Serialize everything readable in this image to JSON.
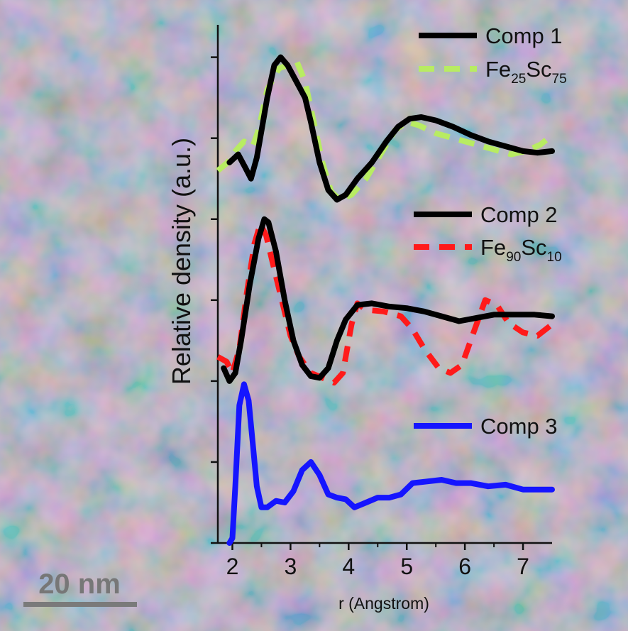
{
  "colors": {
    "comp": "#000000",
    "fe25sc75": "#b8ec62",
    "fe90sc10": "#ff1a1a",
    "comp3": "#1515ff",
    "scalebar": "#7a7a7a"
  },
  "scale_bar": {
    "label": "20 nm"
  },
  "chart_data": {
    "type": "line",
    "title": "",
    "xlabel": "r (Angstrom)",
    "ylabel": "Relative density (a.u.)",
    "xlim": [
      1.75,
      7.5
    ],
    "ylim": [
      0.0,
      3.2
    ],
    "xticks": [
      2,
      3,
      4,
      5,
      6,
      7
    ],
    "xtick_labels": [
      "2",
      "3",
      "4",
      "5",
      "6",
      "7"
    ],
    "yticks": [
      0.0,
      0.5,
      1.0,
      1.5,
      2.0,
      2.5,
      3.0
    ],
    "ytick_labels": [
      "",
      "",
      "",
      "",
      "",
      "",
      ""
    ],
    "legend": [
      {
        "group": "top",
        "text": "Comp 1",
        "series": "Comp 1"
      },
      {
        "group": "top",
        "text": "Fe",
        "sub1": "25",
        "text2": "Sc",
        "sub2": "75",
        "series": "Fe25Sc75"
      },
      {
        "group": "middle",
        "text": "Comp 2",
        "series": "Comp 2"
      },
      {
        "group": "middle",
        "text": "Fe",
        "sub1": "90",
        "text2": "Sc",
        "sub2": "10",
        "series": "Fe90Sc10"
      },
      {
        "group": "bottom",
        "text": "Comp 3",
        "series": "Comp 3"
      }
    ],
    "series": [
      {
        "name": "Comp 1",
        "style": "solid",
        "color": "#000000",
        "points": [
          [
            1.95,
            2.35
          ],
          [
            2.1,
            2.4
          ],
          [
            2.22,
            2.32
          ],
          [
            2.32,
            2.25
          ],
          [
            2.42,
            2.38
          ],
          [
            2.6,
            2.75
          ],
          [
            2.72,
            2.95
          ],
          [
            2.83,
            3.0
          ],
          [
            2.95,
            2.95
          ],
          [
            3.1,
            2.85
          ],
          [
            3.25,
            2.75
          ],
          [
            3.35,
            2.6
          ],
          [
            3.5,
            2.35
          ],
          [
            3.65,
            2.18
          ],
          [
            3.8,
            2.12
          ],
          [
            3.95,
            2.15
          ],
          [
            4.15,
            2.25
          ],
          [
            4.4,
            2.35
          ],
          [
            4.65,
            2.48
          ],
          [
            4.85,
            2.57
          ],
          [
            5.05,
            2.62
          ],
          [
            5.25,
            2.63
          ],
          [
            5.5,
            2.61
          ],
          [
            5.8,
            2.57
          ],
          [
            6.1,
            2.52
          ],
          [
            6.4,
            2.48
          ],
          [
            6.7,
            2.45
          ],
          [
            7.0,
            2.42
          ],
          [
            7.25,
            2.41
          ],
          [
            7.5,
            2.42
          ]
        ]
      },
      {
        "name": "Fe25Sc75",
        "style": "dashed",
        "color": "#b8ec62",
        "points": [
          [
            1.75,
            2.3
          ],
          [
            1.92,
            2.35
          ],
          [
            2.05,
            2.42
          ],
          [
            2.2,
            2.48
          ],
          [
            2.35,
            2.45
          ],
          [
            2.45,
            2.55
          ],
          [
            2.6,
            2.8
          ],
          [
            2.8,
            2.93
          ],
          [
            3.0,
            2.96
          ],
          [
            3.1,
            2.98
          ],
          [
            3.25,
            2.85
          ],
          [
            3.4,
            2.6
          ],
          [
            3.55,
            2.35
          ],
          [
            3.7,
            2.17
          ],
          [
            3.85,
            2.12
          ],
          [
            4.05,
            2.15
          ],
          [
            4.3,
            2.25
          ],
          [
            4.55,
            2.4
          ],
          [
            4.8,
            2.55
          ],
          [
            5.0,
            2.6
          ],
          [
            5.2,
            2.58
          ],
          [
            5.5,
            2.53
          ],
          [
            5.8,
            2.5
          ],
          [
            6.2,
            2.46
          ],
          [
            6.5,
            2.43
          ],
          [
            6.8,
            2.4
          ],
          [
            7.05,
            2.42
          ],
          [
            7.3,
            2.46
          ],
          [
            7.4,
            2.49
          ]
        ]
      },
      {
        "name": "Comp 2",
        "style": "solid",
        "color": "#000000",
        "points": [
          [
            1.85,
            1.08
          ],
          [
            1.95,
            1.0
          ],
          [
            2.05,
            1.05
          ],
          [
            2.15,
            1.25
          ],
          [
            2.3,
            1.6
          ],
          [
            2.45,
            1.88
          ],
          [
            2.55,
            2.0
          ],
          [
            2.62,
            1.98
          ],
          [
            2.75,
            1.8
          ],
          [
            2.9,
            1.5
          ],
          [
            3.05,
            1.25
          ],
          [
            3.2,
            1.1
          ],
          [
            3.35,
            1.03
          ],
          [
            3.5,
            1.02
          ],
          [
            3.65,
            1.08
          ],
          [
            3.8,
            1.25
          ],
          [
            3.95,
            1.38
          ],
          [
            4.15,
            1.47
          ],
          [
            4.4,
            1.48
          ],
          [
            4.7,
            1.46
          ],
          [
            5.0,
            1.45
          ],
          [
            5.3,
            1.43
          ],
          [
            5.6,
            1.4
          ],
          [
            5.9,
            1.37
          ],
          [
            6.2,
            1.39
          ],
          [
            6.5,
            1.41
          ],
          [
            6.9,
            1.41
          ],
          [
            7.2,
            1.41
          ],
          [
            7.5,
            1.4
          ]
        ]
      },
      {
        "name": "Fe90Sc10",
        "style": "dashed",
        "color": "#ff1a1a",
        "points": [
          [
            1.75,
            1.15
          ],
          [
            1.9,
            1.12
          ],
          [
            2.0,
            1.05
          ],
          [
            2.12,
            1.2
          ],
          [
            2.25,
            1.55
          ],
          [
            2.38,
            1.85
          ],
          [
            2.48,
            1.97
          ],
          [
            2.58,
            1.9
          ],
          [
            2.7,
            1.72
          ],
          [
            2.85,
            1.5
          ],
          [
            3.0,
            1.28
          ],
          [
            3.15,
            1.15
          ],
          [
            3.35,
            1.05
          ],
          [
            3.55,
            1.02
          ],
          [
            3.75,
            0.99
          ],
          [
            3.9,
            1.05
          ],
          [
            4.05,
            1.35
          ],
          [
            4.15,
            1.48
          ],
          [
            4.3,
            1.44
          ],
          [
            4.6,
            1.43
          ],
          [
            4.9,
            1.4
          ],
          [
            5.1,
            1.32
          ],
          [
            5.3,
            1.2
          ],
          [
            5.55,
            1.08
          ],
          [
            5.75,
            1.05
          ],
          [
            5.95,
            1.1
          ],
          [
            6.15,
            1.3
          ],
          [
            6.35,
            1.5
          ],
          [
            6.55,
            1.47
          ],
          [
            6.75,
            1.36
          ],
          [
            7.0,
            1.3
          ],
          [
            7.25,
            1.28
          ],
          [
            7.5,
            1.35
          ]
        ]
      },
      {
        "name": "Comp 3",
        "style": "solid",
        "color": "#1515ff",
        "points": [
          [
            1.95,
            0.0
          ],
          [
            2.0,
            0.03
          ],
          [
            2.05,
            0.35
          ],
          [
            2.12,
            0.85
          ],
          [
            2.2,
            0.98
          ],
          [
            2.28,
            0.88
          ],
          [
            2.35,
            0.62
          ],
          [
            2.42,
            0.35
          ],
          [
            2.5,
            0.22
          ],
          [
            2.6,
            0.22
          ],
          [
            2.75,
            0.26
          ],
          [
            2.9,
            0.25
          ],
          [
            3.05,
            0.32
          ],
          [
            3.2,
            0.45
          ],
          [
            3.35,
            0.5
          ],
          [
            3.5,
            0.42
          ],
          [
            3.65,
            0.3
          ],
          [
            3.8,
            0.28
          ],
          [
            3.95,
            0.27
          ],
          [
            4.1,
            0.22
          ],
          [
            4.3,
            0.25
          ],
          [
            4.5,
            0.28
          ],
          [
            4.7,
            0.28
          ],
          [
            4.9,
            0.3
          ],
          [
            5.1,
            0.37
          ],
          [
            5.35,
            0.38
          ],
          [
            5.6,
            0.39
          ],
          [
            5.85,
            0.37
          ],
          [
            6.1,
            0.37
          ],
          [
            6.4,
            0.35
          ],
          [
            6.7,
            0.36
          ],
          [
            7.0,
            0.33
          ],
          [
            7.25,
            0.33
          ],
          [
            7.5,
            0.33
          ]
        ]
      }
    ]
  }
}
